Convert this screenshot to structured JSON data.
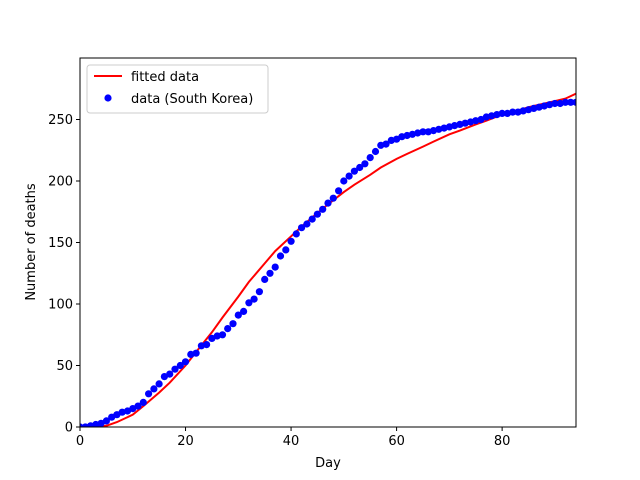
{
  "chart_data": {
    "type": "line",
    "xlabel": "Day",
    "ylabel": "Number of deaths",
    "xlim": [
      0,
      94
    ],
    "ylim": [
      0,
      300
    ],
    "xticks": [
      0,
      20,
      40,
      60,
      80
    ],
    "yticks": [
      0,
      50,
      100,
      150,
      200,
      250
    ],
    "grid": false,
    "legend_position": "upper-left",
    "series": [
      {
        "name": "fitted data",
        "kind": "line",
        "color": "#ff0000",
        "x": [
          0,
          3,
          5,
          7,
          10,
          12,
          15,
          17,
          20,
          22,
          25,
          27,
          30,
          32,
          35,
          37,
          40,
          42,
          45,
          47,
          50,
          52,
          55,
          57,
          60,
          62,
          65,
          67,
          70,
          72,
          75,
          77,
          80,
          82,
          85,
          87,
          90,
          92,
          94
        ],
        "y": [
          0,
          0,
          1,
          4,
          10,
          17,
          28,
          36,
          50,
          61,
          77,
          89,
          106,
          118,
          133,
          143,
          155,
          163,
          174,
          181,
          191,
          197,
          205,
          211,
          218,
          222,
          228,
          232,
          238,
          241,
          246,
          249,
          254,
          256,
          260,
          262,
          265,
          267,
          271
        ]
      },
      {
        "name": "data (South Korea)",
        "kind": "scatter",
        "color": "#0000ff",
        "x": [
          0,
          1,
          2,
          3,
          4,
          5,
          6,
          7,
          8,
          9,
          10,
          11,
          12,
          13,
          14,
          15,
          16,
          17,
          18,
          19,
          20,
          21,
          22,
          23,
          24,
          25,
          26,
          27,
          28,
          29,
          30,
          31,
          32,
          33,
          34,
          35,
          36,
          37,
          38,
          39,
          40,
          41,
          42,
          43,
          44,
          45,
          46,
          47,
          48,
          49,
          50,
          51,
          52,
          53,
          54,
          55,
          56,
          57,
          58,
          59,
          60,
          61,
          62,
          63,
          64,
          65,
          66,
          67,
          68,
          69,
          70,
          71,
          72,
          73,
          74,
          75,
          76,
          77,
          78,
          79,
          80,
          81,
          82,
          83,
          84,
          85,
          86,
          87,
          88,
          89,
          90,
          91,
          92,
          93,
          94
        ],
        "y": [
          0,
          0,
          1,
          2,
          3,
          5,
          8,
          10,
          12,
          13,
          15,
          17,
          20,
          27,
          31,
          35,
          41,
          43,
          47,
          50,
          53,
          59,
          60,
          66,
          67,
          72,
          74,
          75,
          80,
          84,
          91,
          94,
          101,
          104,
          110,
          120,
          125,
          130,
          139,
          144,
          151,
          157,
          162,
          165,
          169,
          173,
          177,
          182,
          186,
          192,
          200,
          204,
          208,
          211,
          214,
          219,
          224,
          229,
          230,
          233,
          234,
          236,
          237,
          238,
          239,
          240,
          240,
          241,
          242,
          243,
          244,
          245,
          246,
          247,
          248,
          249,
          250,
          252,
          253,
          254,
          255,
          255,
          256,
          256,
          257,
          258,
          259,
          260,
          261,
          262,
          263,
          263,
          264,
          264,
          264
        ]
      }
    ]
  }
}
